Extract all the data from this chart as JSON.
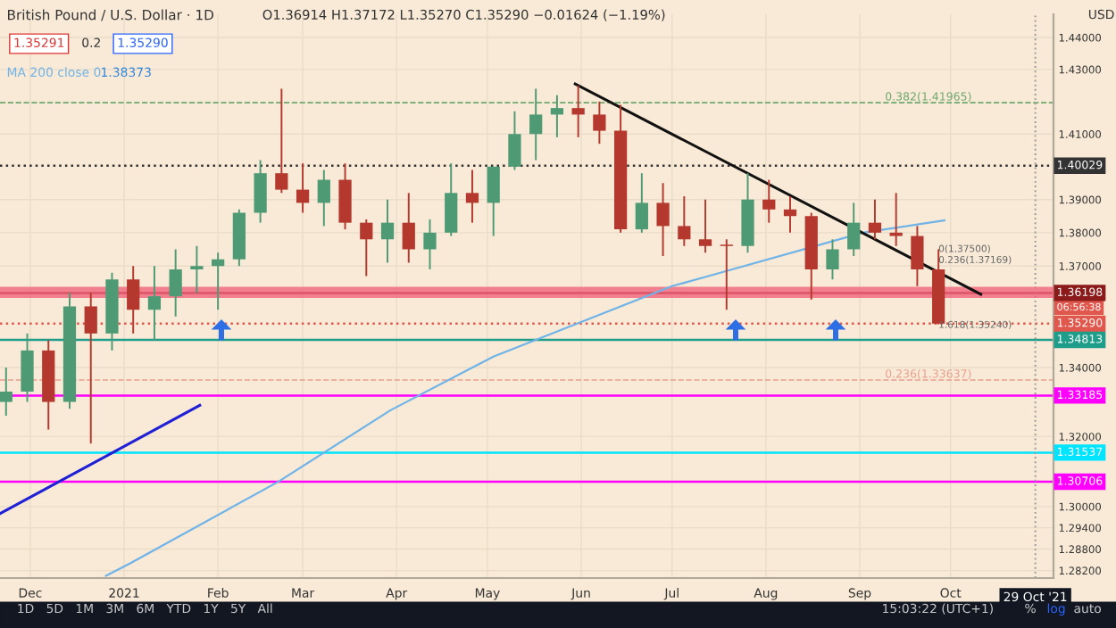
{
  "chart_data": {
    "type": "candlestick",
    "title": "British Pound / U.S. Dollar · 1D",
    "x": [
      "2020-11-23",
      "2020-11-30",
      "2020-12-07",
      "2020-12-14",
      "2020-12-21",
      "2020-12-28",
      "2021-01-04",
      "2021-01-11",
      "2021-01-18",
      "2021-01-25",
      "2021-02-01",
      "2021-02-08",
      "2021-02-15",
      "2021-02-22",
      "2021-03-01",
      "2021-03-08",
      "2021-03-15",
      "2021-03-22",
      "2021-03-29",
      "2021-04-05",
      "2021-04-12",
      "2021-04-19",
      "2021-04-26",
      "2021-05-03",
      "2021-05-10",
      "2021-05-17",
      "2021-05-24",
      "2021-05-31",
      "2021-06-07",
      "2021-06-14",
      "2021-06-21",
      "2021-06-28",
      "2021-07-05",
      "2021-07-12",
      "2021-07-19",
      "2021-07-26",
      "2021-08-02",
      "2021-08-09",
      "2021-08-16",
      "2021-08-23",
      "2021-08-30",
      "2021-09-06",
      "2021-09-13",
      "2021-09-20",
      "2021-09-27"
    ],
    "ohlc": [
      [
        1.33,
        1.34,
        1.326,
        1.333
      ],
      [
        1.333,
        1.35,
        1.33,
        1.345
      ],
      [
        1.345,
        1.348,
        1.322,
        1.33
      ],
      [
        1.33,
        1.362,
        1.328,
        1.358
      ],
      [
        1.358,
        1.362,
        1.318,
        1.35
      ],
      [
        1.35,
        1.368,
        1.345,
        1.366
      ],
      [
        1.366,
        1.37,
        1.35,
        1.357
      ],
      [
        1.357,
        1.37,
        1.348,
        1.361
      ],
      [
        1.361,
        1.375,
        1.355,
        1.369
      ],
      [
        1.369,
        1.376,
        1.362,
        1.37
      ],
      [
        1.37,
        1.374,
        1.357,
        1.372
      ],
      [
        1.372,
        1.387,
        1.37,
        1.386
      ],
      [
        1.386,
        1.402,
        1.383,
        1.398
      ],
      [
        1.398,
        1.424,
        1.392,
        1.393
      ],
      [
        1.393,
        1.401,
        1.386,
        1.389
      ],
      [
        1.389,
        1.399,
        1.382,
        1.396
      ],
      [
        1.396,
        1.401,
        1.381,
        1.383
      ],
      [
        1.383,
        1.384,
        1.367,
        1.378
      ],
      [
        1.378,
        1.39,
        1.371,
        1.383
      ],
      [
        1.383,
        1.392,
        1.371,
        1.375
      ],
      [
        1.375,
        1.384,
        1.369,
        1.38
      ],
      [
        1.38,
        1.401,
        1.379,
        1.392
      ],
      [
        1.392,
        1.399,
        1.383,
        1.389
      ],
      [
        1.389,
        1.4,
        1.379,
        1.4
      ],
      [
        1.4,
        1.417,
        1.399,
        1.41
      ],
      [
        1.41,
        1.424,
        1.402,
        1.416
      ],
      [
        1.416,
        1.422,
        1.409,
        1.418
      ],
      [
        1.418,
        1.425,
        1.409,
        1.416
      ],
      [
        1.416,
        1.42,
        1.407,
        1.411
      ],
      [
        1.411,
        1.419,
        1.38,
        1.381
      ],
      [
        1.381,
        1.398,
        1.38,
        1.389
      ],
      [
        1.389,
        1.395,
        1.373,
        1.382
      ],
      [
        1.382,
        1.391,
        1.376,
        1.378
      ],
      [
        1.378,
        1.39,
        1.374,
        1.376
      ],
      [
        1.376,
        1.378,
        1.357,
        1.376
      ],
      [
        1.376,
        1.398,
        1.374,
        1.39
      ],
      [
        1.39,
        1.396,
        1.383,
        1.387
      ],
      [
        1.387,
        1.391,
        1.38,
        1.385
      ],
      [
        1.385,
        1.386,
        1.36,
        1.369
      ],
      [
        1.369,
        1.378,
        1.366,
        1.375
      ],
      [
        1.375,
        1.389,
        1.373,
        1.383
      ],
      [
        1.383,
        1.39,
        1.378,
        1.38
      ],
      [
        1.38,
        1.392,
        1.376,
        1.379
      ],
      [
        1.379,
        1.382,
        1.364,
        1.369
      ],
      [
        1.369,
        1.375,
        1.3527,
        1.3529
      ]
    ],
    "colors": [
      "#4e9a74",
      "#4e9a74",
      "#b5382e",
      "#4e9a74",
      "#b5382e",
      "#4e9a74",
      "#b5382e",
      "#4e9a74",
      "#4e9a74",
      "#4e9a74",
      "#4e9a74",
      "#4e9a74",
      "#4e9a74",
      "#b5382e",
      "#b5382e",
      "#4e9a74",
      "#b5382e",
      "#b5382e",
      "#4e9a74",
      "#b5382e",
      "#4e9a74",
      "#4e9a74",
      "#b5382e",
      "#4e9a74",
      "#4e9a74",
      "#4e9a74",
      "#4e9a74",
      "#b5382e",
      "#b5382e",
      "#b5382e",
      "#4e9a74",
      "#b5382e",
      "#b5382e",
      "#b5382e",
      "#b5382e",
      "#4e9a74",
      "#b5382e",
      "#b5382e",
      "#b5382e",
      "#4e9a74",
      "#4e9a74",
      "#b5382e",
      "#b5382e",
      "#b5382e",
      "#b5382e"
    ],
    "series": [
      {
        "type": "line",
        "name": "MA 200 close 0",
        "color": "#6fb3e8",
        "x": [
          "2020-12-26",
          "2021-01-03",
          "2021-02-21",
          "2021-03-30",
          "2021-05-03",
          "2021-07-01",
          "2021-07-13",
          "2021-09-02",
          "2021-09-29"
        ],
        "values": [
          1.2805,
          1.284,
          1.3071,
          1.3276,
          1.3432,
          1.364,
          1.367,
          1.38,
          1.3837
        ]
      },
      {
        "type": "line",
        "color": "#1f1fd6",
        "x": [
          "2020-11-21",
          "2021-01-26"
        ],
        "values": [
          1.298,
          1.329
        ]
      },
      {
        "type": "line",
        "color": "#111111",
        "x": [
          "2021-05-30",
          "2021-10-11"
        ],
        "values": [
          1.4255,
          1.3616
        ]
      }
    ],
    "xlim": [
      "2020-11-21",
      "2021-11-04"
    ],
    "xticks": [
      {
        "value": "2020-12-01",
        "label": "Dec"
      },
      {
        "value": "2021-01-01",
        "label": "2021"
      },
      {
        "value": "2021-02-01",
        "label": "Feb"
      },
      {
        "value": "2021-03-01",
        "label": "Mar"
      },
      {
        "value": "2021-04-01",
        "label": "Apr"
      },
      {
        "value": "2021-05-01",
        "label": "May"
      },
      {
        "value": "2021-06-01",
        "label": "Jun"
      },
      {
        "value": "2021-07-01",
        "label": "Jul"
      },
      {
        "value": "2021-08-01",
        "label": "Aug"
      },
      {
        "value": "2021-09-01",
        "label": "Sep"
      },
      {
        "value": "2021-10-01",
        "label": "Oct"
      }
    ],
    "log": true,
    "ylim": [
      1.2799,
      1.4473
    ],
    "yticks": [
      {
        "value": 1.282,
        "label": "1.28200"
      },
      {
        "value": 1.288,
        "label": "1.28800"
      },
      {
        "value": 1.294,
        "label": "1.29400"
      },
      {
        "value": 1.3,
        "label": "1.30000"
      },
      {
        "value": 1.32,
        "label": "1.32000"
      },
      {
        "value": 1.34,
        "label": "1.34000"
      },
      {
        "value": 1.37,
        "label": "1.37000"
      },
      {
        "value": 1.38,
        "label": "1.38000"
      },
      {
        "value": 1.39,
        "label": "1.39000"
      },
      {
        "value": 1.41,
        "label": "1.41000"
      },
      {
        "value": 1.43,
        "label": "1.43000"
      },
      {
        "value": 1.44,
        "label": "1.44000"
      }
    ],
    "grid": true,
    "ref_lines": [
      {
        "axis": "y",
        "value": 1.40029,
        "label": "1.40029",
        "color": "#333333",
        "line_style": "dotted"
      },
      {
        "axis": "y",
        "value": 1.36198,
        "label": "1.36198",
        "color": "#8b1a1a",
        "line_style": "solid"
      },
      {
        "axis": "y",
        "value": 1.3529,
        "label": "1.35290",
        "color": "#e0584d",
        "line_style": "dotted"
      },
      {
        "axis": "y",
        "value": 1.34813,
        "label": "1.34813",
        "color": "#1e9e8a",
        "line_style": "solid"
      },
      {
        "axis": "y",
        "value": 1.33185,
        "label": "1.33185",
        "color": "#ff00ff",
        "line_style": "solid"
      },
      {
        "axis": "y",
        "value": 1.31537,
        "label": "1.31537",
        "color": "#00e5ff",
        "line_style": "solid"
      },
      {
        "axis": "y",
        "value": 1.30706,
        "label": "1.30706",
        "color": "#ff00ff",
        "line_style": "solid"
      },
      {
        "axis": "y",
        "value": 1.41965,
        "label": "0.382(1.41965)",
        "color": "#6fa86f",
        "line_style": "dashed"
      },
      {
        "axis": "y",
        "value": 1.33637,
        "label": "0.236(1.33637)",
        "color": "#e8a090",
        "line_style": "dashed"
      },
      {
        "axis": "x",
        "value": "2021-10-29",
        "label": "29 Oct '21",
        "color": "#999999",
        "line_style": "dotted"
      }
    ],
    "bands": [
      {
        "axis": "y",
        "from": 1.3605,
        "to": 1.3638,
        "color": "#f0647a"
      }
    ],
    "annotations": [
      "O1.36914 H1.37172 L1.35270 C1.35290 −0.01624 (−1.19%)",
      "1.35291",
      "0.2",
      "1.35290",
      "1.38373",
      "USD",
      "1D   5D   1M   3M   6M   YTD   1Y   5Y   All",
      "15:03:22 (UTC+1)",
      "%",
      "log",
      "auto",
      "06:56:38",
      {
        "text": "0(1.37500)",
        "x": "2021-09-27",
        "y": 1.375
      },
      {
        "text": "0.236(1.37169)",
        "x": "2021-09-27",
        "y": 1.37169
      },
      {
        "text": "1.618(1.35240)",
        "x": "2021-09-27",
        "y": 1.3524
      }
    ]
  }
}
